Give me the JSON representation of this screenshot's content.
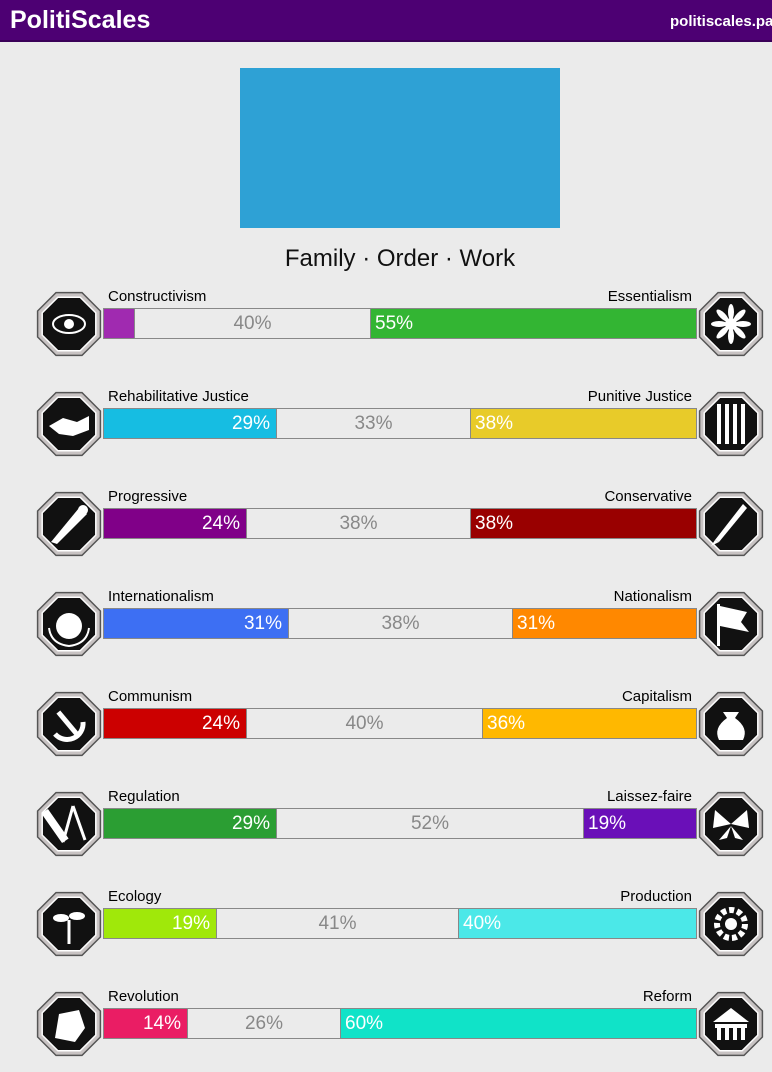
{
  "header": {
    "title": "PolitiScales",
    "url": "politiscales.pa"
  },
  "flag": {
    "color": "#2ea1d5"
  },
  "slogan": "Family · Order · Work",
  "axes": [
    {
      "left_label": "Constructivism",
      "right_label": "Essentialism",
      "left_value": 0.05,
      "middle_value": 0.4,
      "right_value": 0.55,
      "left_text": "",
      "middle_text": "40%",
      "right_text": "55%",
      "left_color": "#a02ab0",
      "right_color": "#33b533",
      "left_icon": "eye-icon",
      "right_icon": "flower-icon"
    },
    {
      "left_label": "Rehabilitative Justice",
      "right_label": "Punitive Justice",
      "left_value": 0.29,
      "middle_value": 0.33,
      "right_value": 0.38,
      "left_text": "29%",
      "middle_text": "33%",
      "right_text": "38%",
      "left_color": "#16bde2",
      "right_color": "#e8cb29",
      "left_icon": "handshake-icon",
      "right_icon": "prison-bars-icon"
    },
    {
      "left_label": "Progressive",
      "right_label": "Conservative",
      "left_value": 0.24,
      "middle_value": 0.38,
      "right_value": 0.38,
      "left_text": "24%",
      "middle_text": "38%",
      "right_text": "38%",
      "left_color": "#800088",
      "right_color": "#990000",
      "left_icon": "comet-icon",
      "right_icon": "quill-icon"
    },
    {
      "left_label": "Internationalism",
      "right_label": "Nationalism",
      "left_value": 0.31,
      "middle_value": 0.38,
      "right_value": 0.31,
      "left_text": "31%",
      "middle_text": "38%",
      "right_text": "31%",
      "left_color": "#3d6ff3",
      "right_color": "#ff8800",
      "left_icon": "globe-laurel-icon",
      "right_icon": "flag-icon"
    },
    {
      "left_label": "Communism",
      "right_label": "Capitalism",
      "left_value": 0.24,
      "middle_value": 0.4,
      "right_value": 0.36,
      "left_text": "24%",
      "middle_text": "40%",
      "right_text": "36%",
      "left_color": "#cc0000",
      "right_color": "#ffb800",
      "left_icon": "hammer-sickle-icon",
      "right_icon": "money-bag-icon"
    },
    {
      "left_label": "Regulation",
      "right_label": "Laissez-faire",
      "left_value": 0.29,
      "middle_value": 0.52,
      "right_value": 0.19,
      "left_text": "29%",
      "middle_text": "52%",
      "right_text": "19%",
      "left_color": "#2b9e33",
      "right_color": "#6a0fb8",
      "left_icon": "ruler-compass-icon",
      "right_icon": "butterfly-icon"
    },
    {
      "left_label": "Ecology",
      "right_label": "Production",
      "left_value": 0.19,
      "middle_value": 0.41,
      "right_value": 0.4,
      "left_text": "19%",
      "middle_text": "41%",
      "right_text": "40%",
      "left_color": "#a0e80a",
      "right_color": "#4be8e8",
      "left_icon": "sprout-icon",
      "right_icon": "gear-icon"
    },
    {
      "left_label": "Revolution",
      "right_label": "Reform",
      "left_value": 0.14,
      "middle_value": 0.26,
      "right_value": 0.6,
      "left_text": "14%",
      "middle_text": "26%",
      "right_text": "60%",
      "left_color": "#ea1d64",
      "right_color": "#10e3c8",
      "left_icon": "fist-icon",
      "right_icon": "parliament-icon"
    }
  ]
}
